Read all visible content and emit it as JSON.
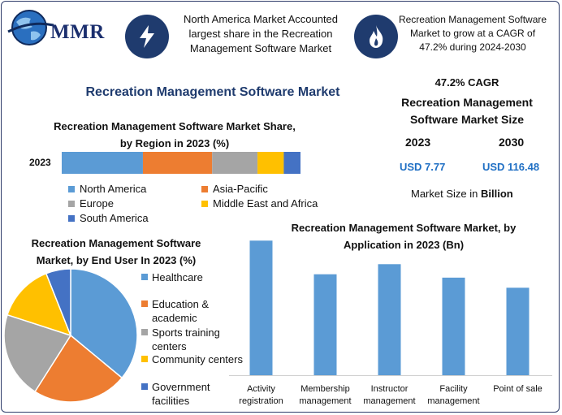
{
  "header": {
    "logo_text": "MMR",
    "box1_text": "North America Market Accounted largest share in the Recreation Management Software Market",
    "box1_icon": "lightning-icon",
    "box2_text": "Recreation Management Software Market to grow at a CAGR of 47.2% during 2024-2030",
    "box2_icon": "flame-icon"
  },
  "title": "Recreation Management Software Market",
  "market_size": {
    "cagr": "47.2% CAGR",
    "heading": "Recreation Management Software Market Size",
    "year1": "2023",
    "year2": "2030",
    "value1": "USD 7.77",
    "value2": "USD 116.48",
    "unit_note_prefix": "Market Size in ",
    "unit_note_bold": "Billion"
  },
  "colors": {
    "blue": "#5b9bd5",
    "orange": "#ed7d31",
    "gray": "#a5a5a5",
    "yellow": "#ffc000",
    "darkblue": "#4472c4",
    "navy": "#1f3b6e",
    "value_blue": "#1f6fc4"
  },
  "chart_data": [
    {
      "type": "bar",
      "orientation": "horizontal-stacked",
      "title": "Recreation Management Software Market Share, by Region in 2023 (%)",
      "categories": [
        "2023"
      ],
      "series": [
        {
          "name": "North America",
          "values": [
            34
          ]
        },
        {
          "name": "Asia-Pacific",
          "values": [
            29
          ]
        },
        {
          "name": "Europe",
          "values": [
            19
          ]
        },
        {
          "name": "Middle East and Africa",
          "values": [
            11
          ]
        },
        {
          "name": "South America",
          "values": [
            7
          ]
        }
      ],
      "legend": "bottom"
    },
    {
      "type": "pie",
      "title": "Recreation Management Software Market, by End User In 2023 (%)",
      "labels": [
        "Healthcare",
        "Education & academic",
        "Sports training centers",
        "Community centers",
        "Government facilities"
      ],
      "values": [
        36,
        23,
        21,
        14,
        6
      ],
      "legend": "right"
    },
    {
      "type": "bar",
      "title": "Recreation Management Software Market, by Application in 2023 (Bn)",
      "categories": [
        "Activity registration",
        "Membership management",
        "Instructor management",
        "Facility management",
        "Point of sale"
      ],
      "values": [
        2.0,
        1.5,
        1.65,
        1.45,
        1.3
      ],
      "ylim": [
        0,
        2.1
      ],
      "grid": false
    }
  ]
}
